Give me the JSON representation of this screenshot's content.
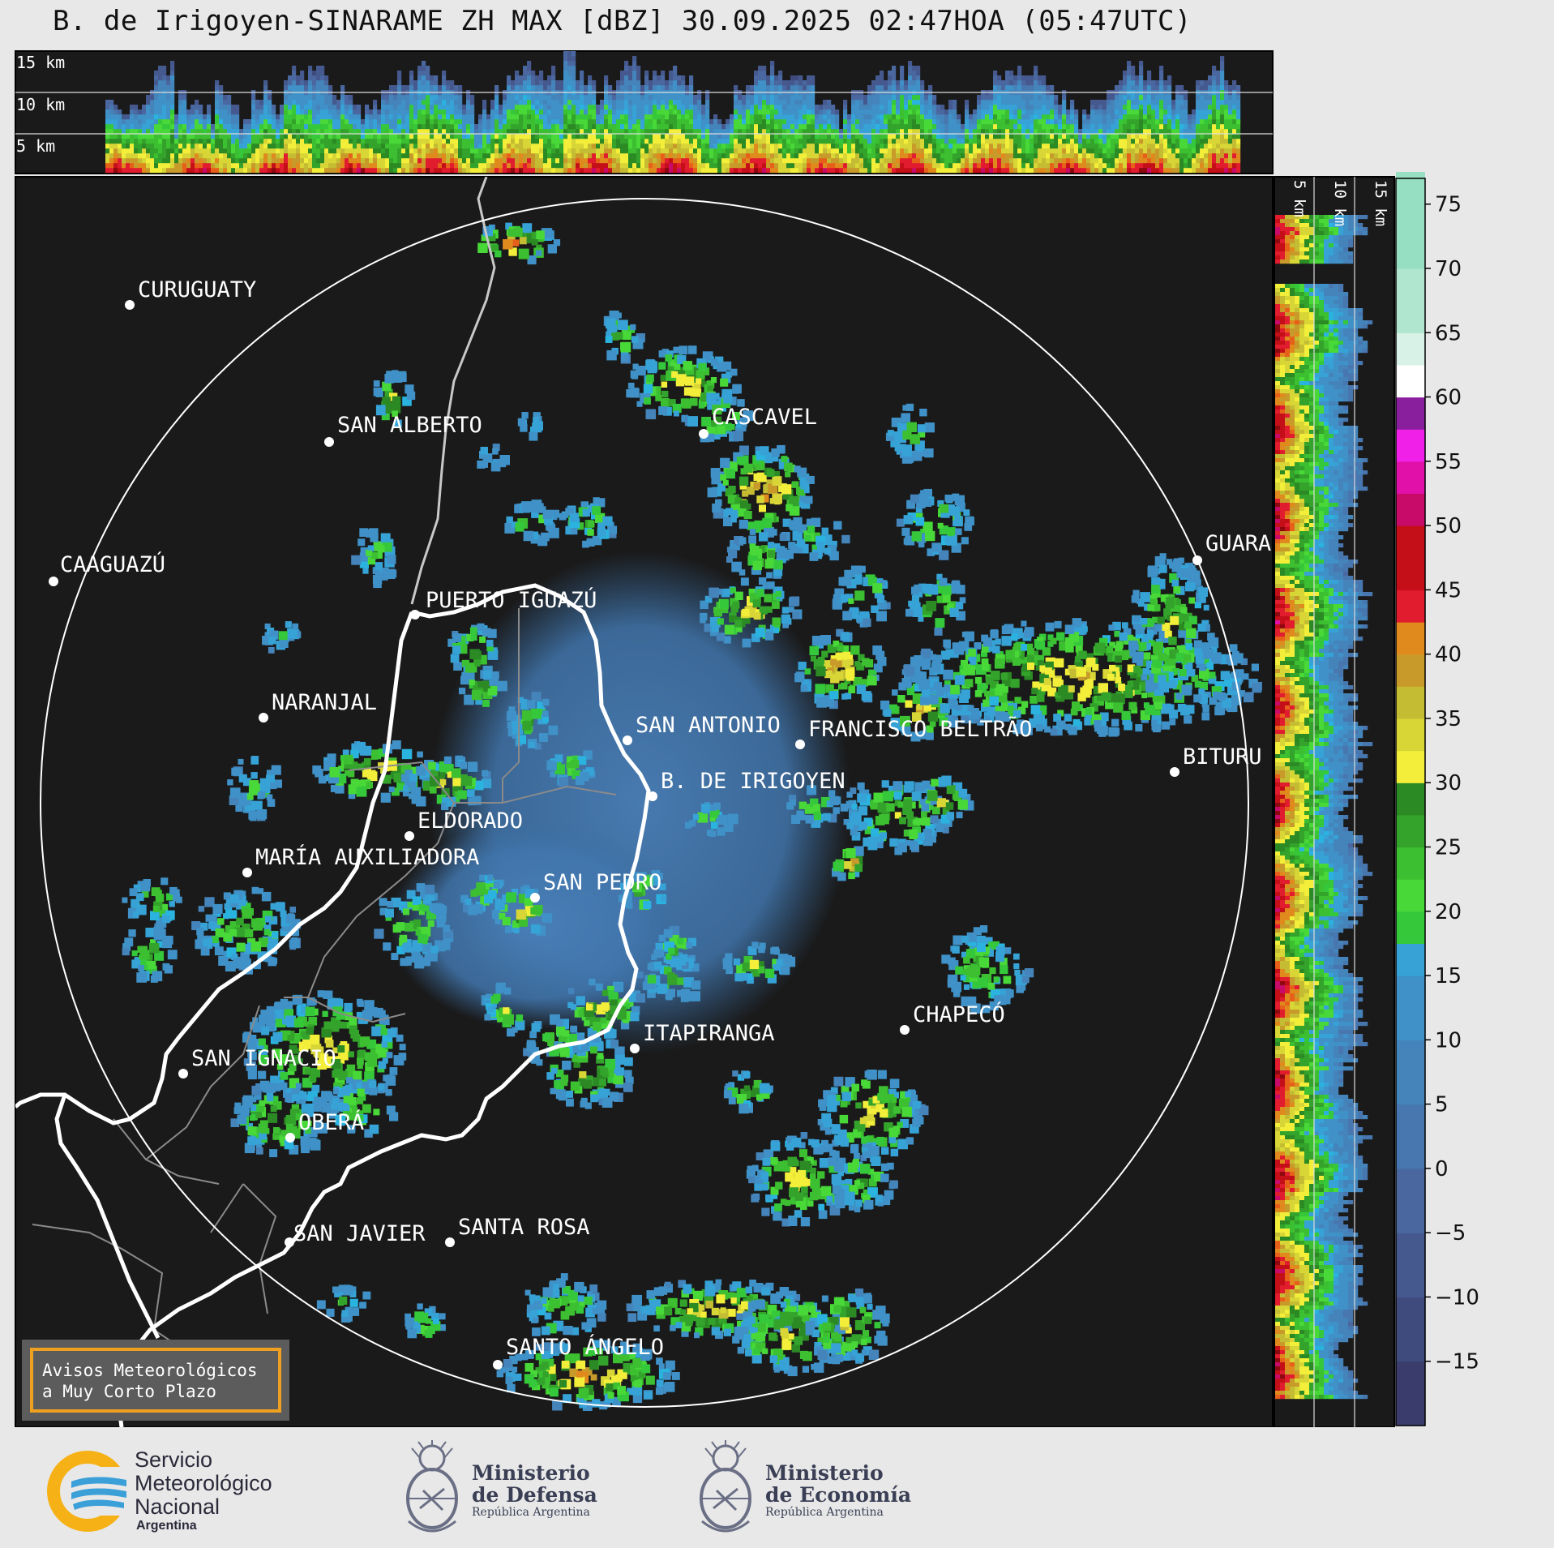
{
  "title": "B. de Irigoyen-SINARAME ZH MAX [dBZ] 30.09.2025 02:47HOA (05:47UTC)",
  "top_profile": {
    "altitude_labels": [
      "15 km",
      "10 km",
      "5 km"
    ]
  },
  "side_profile": {
    "altitude_labels": [
      "5 km",
      "10 km",
      "15 km"
    ]
  },
  "colorbar": {
    "unit": "dBZ",
    "ticks": [
      "75",
      "70",
      "65",
      "60",
      "55",
      "50",
      "45",
      "40",
      "35",
      "30",
      "25",
      "20",
      "15",
      "10",
      "5",
      "0",
      "−5",
      "−10",
      "−15"
    ],
    "range": [
      -20,
      77
    ]
  },
  "cities": [
    {
      "name": "CURUGUATY"
    },
    {
      "name": "SAN ALBERTO"
    },
    {
      "name": "CASCAVEL"
    },
    {
      "name": "CAAGUAZÚ"
    },
    {
      "name": "GUARA"
    },
    {
      "name": "PUERTO IGUAZÚ"
    },
    {
      "name": "NARANJAL"
    },
    {
      "name": "SAN ANTONIO"
    },
    {
      "name": "FRANCISCO BELTRÃO"
    },
    {
      "name": "BITURU"
    },
    {
      "name": "B. DE IRIGOYEN"
    },
    {
      "name": "ELDORADO"
    },
    {
      "name": "MARÍA AUXILIADORA"
    },
    {
      "name": "SAN PEDRO"
    },
    {
      "name": "CHAPECÓ"
    },
    {
      "name": "ITAPIRANGA"
    },
    {
      "name": "SAN IGNACIO"
    },
    {
      "name": "OBERÁ"
    },
    {
      "name": "SAN JAVIER"
    },
    {
      "name": "SANTA ROSA"
    },
    {
      "name": "SANTO ÁNGELO"
    }
  ],
  "warning_box": {
    "line1": "Avisos Meteorológicos",
    "line2": "a Muy Corto Plazo"
  },
  "logos": {
    "smn": {
      "line1": "Servicio",
      "line2": "Meteorológico",
      "line3": "Nacional",
      "sub": "Argentina"
    },
    "defensa": {
      "line1": "Ministerio",
      "line2": "de Defensa",
      "sub": "República Argentina"
    },
    "economia": {
      "line1": "Ministerio",
      "line2": "de Economía",
      "sub": "República Argentina"
    }
  },
  "colors": {
    "map_background": "#1a1a1a",
    "range_ring": "#ffffff",
    "border": "#ffffff",
    "warning_frame": "#f0a020",
    "smn_yellow": "#f6b116",
    "smn_blue": "#3b9fd8"
  }
}
